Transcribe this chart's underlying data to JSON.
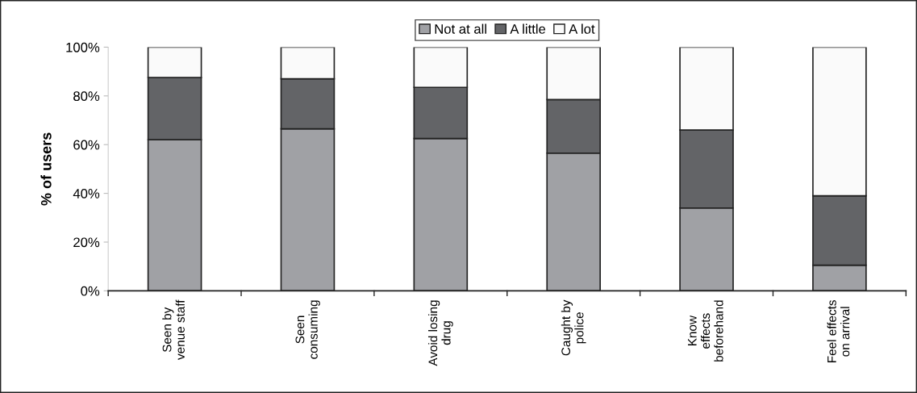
{
  "chart_data": {
    "type": "bar",
    "stacked": true,
    "ylabel": "% of users",
    "categories": [
      "Seen by\nvenue staff",
      "Seen\nconsuming",
      "Avoid losing\ndrug",
      "Caught by\npolice",
      "Know\neffects\nbeforehand",
      "Feel effects\non arrival"
    ],
    "series": [
      {
        "name": "Not at all",
        "color": "#a0a1a5",
        "values": [
          62,
          66.5,
          62.5,
          56.5,
          34,
          10.5
        ]
      },
      {
        "name": "A little",
        "color": "#636467",
        "values": [
          25.5,
          20.5,
          21,
          22,
          32,
          28.5
        ]
      },
      {
        "name": "A lot",
        "color": "#fafafa",
        "values": [
          12.5,
          13,
          16.5,
          21.5,
          34,
          61
        ]
      }
    ],
    "ylim": [
      0,
      100
    ],
    "yticks": [
      {
        "value": 0,
        "label": "0%"
      },
      {
        "value": 20,
        "label": "20%"
      },
      {
        "value": 40,
        "label": "40%"
      },
      {
        "value": 60,
        "label": "60%"
      },
      {
        "value": 80,
        "label": "80%"
      },
      {
        "value": 100,
        "label": "100%"
      }
    ],
    "grid": false,
    "legend": "top"
  }
}
